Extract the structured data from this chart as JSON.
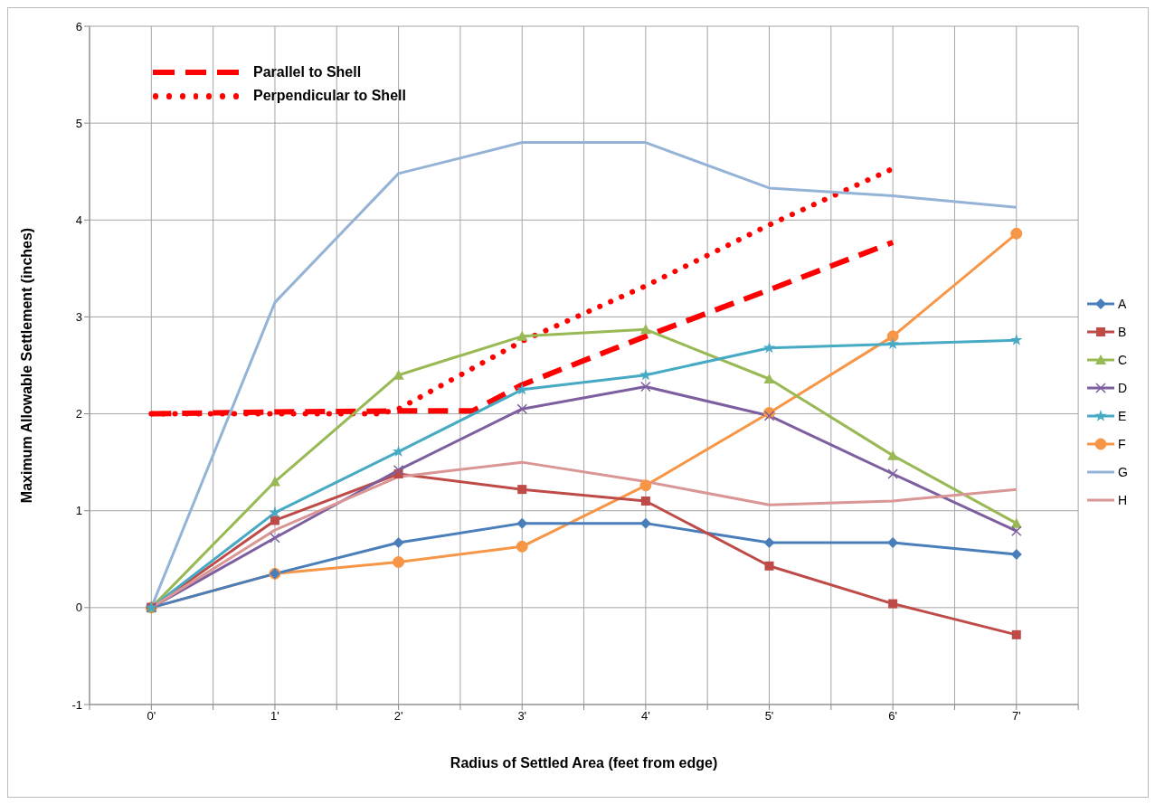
{
  "chart_data": {
    "type": "line",
    "xlabel": "Radius of Settled Area (feet from edge)",
    "ylabel": "Maximum Allowable Settlement (inches)",
    "xlim": [
      -0.5,
      7.5
    ],
    "xticks": [
      {
        "value": -0.5,
        "label": null
      },
      {
        "value": 0,
        "label": "0'"
      },
      {
        "value": 0.5,
        "label": null
      },
      {
        "value": 1,
        "label": "1'"
      },
      {
        "value": 1.5,
        "label": null
      },
      {
        "value": 2,
        "label": "2'"
      },
      {
        "value": 2.5,
        "label": null
      },
      {
        "value": 3,
        "label": "3'"
      },
      {
        "value": 3.5,
        "label": null
      },
      {
        "value": 4,
        "label": "4'"
      },
      {
        "value": 4.5,
        "label": null
      },
      {
        "value": 5,
        "label": "5'"
      },
      {
        "value": 5.5,
        "label": null
      },
      {
        "value": 6,
        "label": "6'"
      },
      {
        "value": 6.5,
        "label": null
      },
      {
        "value": 7,
        "label": "7'"
      },
      {
        "value": 7.5,
        "label": null
      }
    ],
    "ylim": [
      -1,
      6
    ],
    "yticks": [
      -1,
      0,
      1,
      2,
      3,
      4,
      5,
      6
    ],
    "grid": true,
    "legend": "right",
    "x": [
      0,
      1,
      2,
      3,
      4,
      5,
      6,
      7
    ],
    "series": [
      {
        "name": "Parallel to Shell",
        "color": "#ff0000",
        "line_style": "dashed",
        "marker": "none",
        "x": [
          0,
          1,
          2,
          2.6,
          3,
          4,
          5,
          6
        ],
        "values": [
          2,
          2.02,
          2.03,
          2.03,
          2.3,
          2.8,
          3.28,
          3.77
        ]
      },
      {
        "name": "Perpendicular to Shell",
        "color": "#ff0000",
        "line_style": "dotted",
        "marker": "none",
        "x": [
          0,
          1,
          1.85,
          2,
          3,
          4,
          5,
          6
        ],
        "values": [
          2,
          2,
          2,
          2.05,
          2.75,
          3.32,
          3.95,
          4.53
        ]
      },
      {
        "name": "A",
        "color": "#4a7ebb",
        "marker": "diamond",
        "values": [
          0,
          0.35,
          0.67,
          0.87,
          0.87,
          0.67,
          0.67,
          0.55
        ]
      },
      {
        "name": "B",
        "color": "#be4b48",
        "marker": "square",
        "values": [
          0,
          0.9,
          1.38,
          1.22,
          1.1,
          0.43,
          0.04,
          -0.28
        ]
      },
      {
        "name": "C",
        "color": "#98b954",
        "marker": "triangle",
        "values": [
          0,
          1.3,
          2.4,
          2.8,
          2.87,
          2.36,
          1.57,
          0.87
        ]
      },
      {
        "name": "D",
        "color": "#7d5fa0",
        "marker": "cross",
        "values": [
          0,
          0.72,
          1.42,
          2.05,
          2.28,
          1.98,
          1.38,
          0.79
        ]
      },
      {
        "name": "E",
        "color": "#46aac5",
        "marker": "star",
        "values": [
          0,
          0.98,
          1.61,
          2.25,
          2.4,
          2.68,
          2.72,
          2.76
        ]
      },
      {
        "name": "F",
        "color": "#f79646",
        "marker": "circle",
        "values": [
          0,
          0.35,
          0.47,
          0.63,
          1.26,
          2.01,
          2.8,
          3.86
        ]
      },
      {
        "name": "G",
        "color": "#95b3d7",
        "marker": "none",
        "values": [
          0,
          3.15,
          4.48,
          4.8,
          4.8,
          4.33,
          4.25,
          4.13
        ]
      },
      {
        "name": "H",
        "color": "#d99694",
        "marker": "none",
        "values": [
          0,
          0.8,
          1.35,
          1.5,
          1.3,
          1.06,
          1.1,
          1.22
        ]
      }
    ]
  }
}
